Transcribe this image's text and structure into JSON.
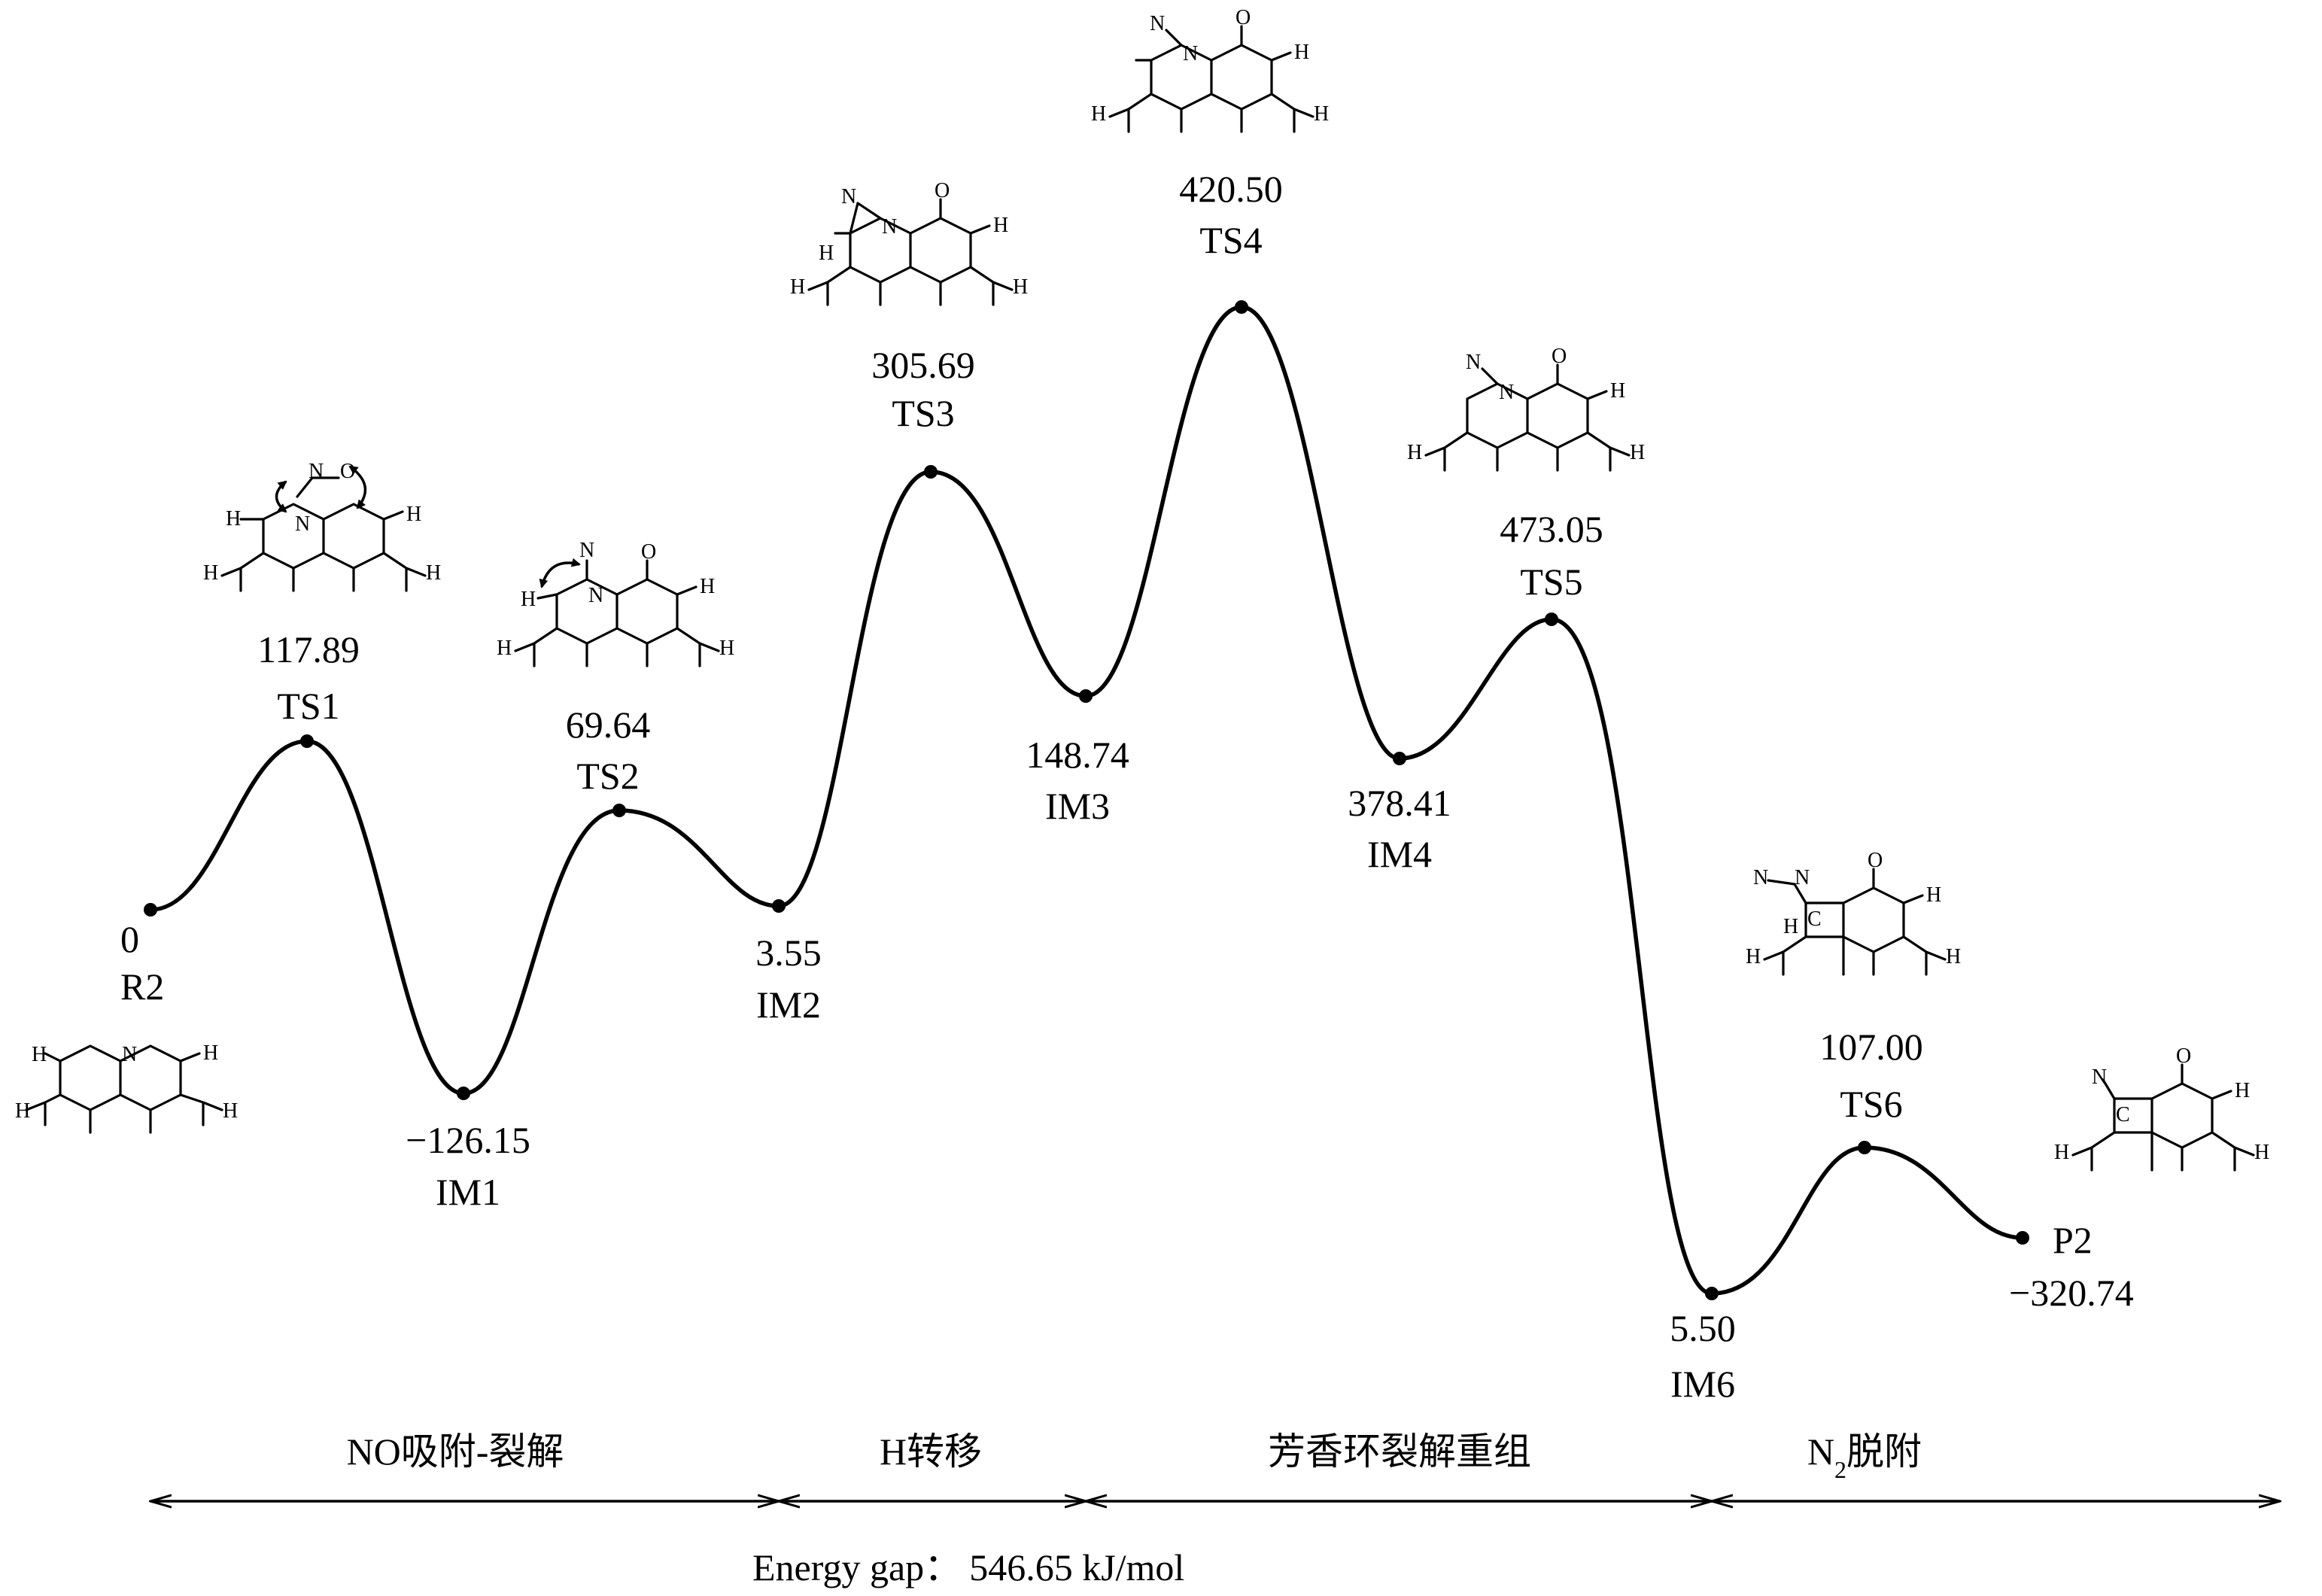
{
  "points": [
    {
      "id": "R2",
      "value": "0",
      "name": "R2"
    },
    {
      "id": "TS1",
      "value": "117.89",
      "name": "TS1"
    },
    {
      "id": "IM1",
      "value": "−126.15",
      "name": "IM1"
    },
    {
      "id": "TS2",
      "value": "69.64",
      "name": "TS2"
    },
    {
      "id": "IM2",
      "value": "3.55",
      "name": "IM2"
    },
    {
      "id": "TS3",
      "value": "305.69",
      "name": "TS3"
    },
    {
      "id": "IM3",
      "value": "148.74",
      "name": "IM3"
    },
    {
      "id": "TS4",
      "value": "420.50",
      "name": "TS4"
    },
    {
      "id": "IM4",
      "value": "378.41",
      "name": "IM4"
    },
    {
      "id": "TS5",
      "value": "473.05",
      "name": "TS5"
    },
    {
      "id": "IM6",
      "value": "5.50",
      "name": "IM6"
    },
    {
      "id": "TS6",
      "value": "107.00",
      "name": "TS6"
    },
    {
      "id": "P2",
      "value": "−320.74",
      "name": "P2"
    }
  ],
  "stages": [
    {
      "label": "NO吸附-裂解"
    },
    {
      "label": "H转移"
    },
    {
      "label": "芳香环裂解重组"
    },
    {
      "label_main": "N",
      "label_sub": "2",
      "label_rest": "脱附"
    }
  ],
  "energy_gap": {
    "label": "Energy gap：",
    "value": "546.65 kJ/mol"
  },
  "atoms": {
    "H": "H",
    "N": "N",
    "O": "O",
    "C": "C"
  },
  "colors": {
    "line": "#000000",
    "background": "#ffffff"
  }
}
